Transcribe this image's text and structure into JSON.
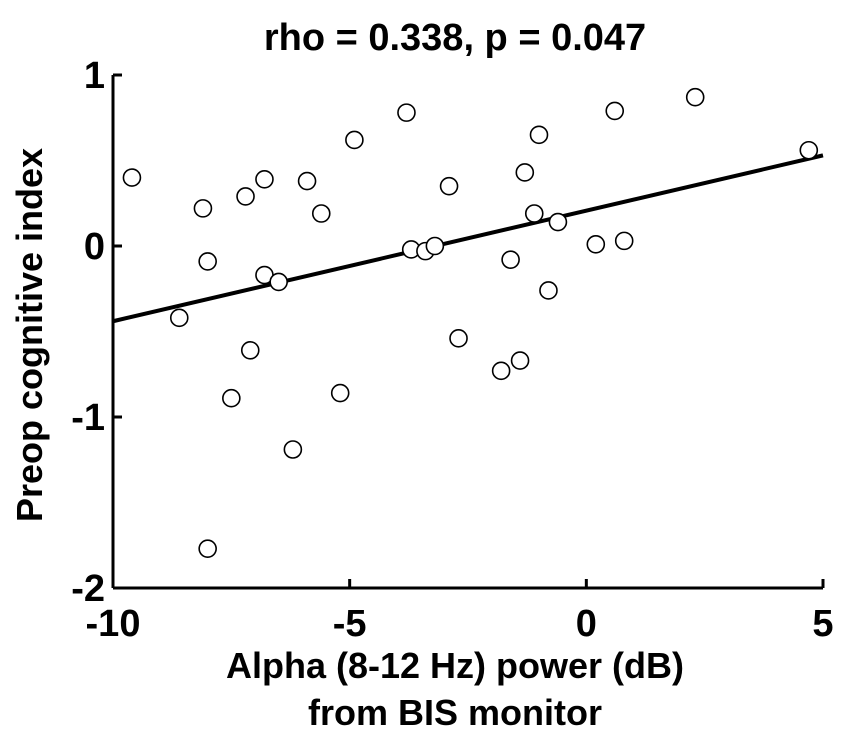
{
  "chart_data": {
    "type": "scatter",
    "title": "rho = 0.338, p = 0.047",
    "xlabel": [
      "Alpha (8-12 Hz) power (dB)",
      "from BIS monitor"
    ],
    "ylabel": "Preop cognitive index",
    "xlim": [
      -10,
      5
    ],
    "ylim": [
      -2,
      1
    ],
    "xticks": [
      {
        "value": -10,
        "label": "-10"
      },
      {
        "value": -5,
        "label": "-5"
      },
      {
        "value": 0,
        "label": "0"
      },
      {
        "value": 5,
        "label": "5"
      }
    ],
    "yticks": [
      {
        "value": 1,
        "label": "1"
      },
      {
        "value": 0,
        "label": "0"
      },
      {
        "value": -1,
        "label": "-1"
      },
      {
        "value": -2,
        "label": "-2"
      }
    ],
    "points": [
      {
        "x": -9.6,
        "y": 0.4
      },
      {
        "x": -8.6,
        "y": -0.42
      },
      {
        "x": -8.1,
        "y": 0.22
      },
      {
        "x": -8.0,
        "y": -0.09
      },
      {
        "x": -8.0,
        "y": -1.77
      },
      {
        "x": -7.5,
        "y": -0.89
      },
      {
        "x": -7.2,
        "y": 0.29
      },
      {
        "x": -7.1,
        "y": -0.61
      },
      {
        "x": -6.8,
        "y": 0.39
      },
      {
        "x": -6.8,
        "y": -0.17
      },
      {
        "x": -6.5,
        "y": -0.21
      },
      {
        "x": -6.2,
        "y": -1.19
      },
      {
        "x": -5.9,
        "y": 0.38
      },
      {
        "x": -5.6,
        "y": 0.19
      },
      {
        "x": -5.2,
        "y": -0.86
      },
      {
        "x": -4.9,
        "y": 0.62
      },
      {
        "x": -3.8,
        "y": 0.78
      },
      {
        "x": -3.7,
        "y": -0.02
      },
      {
        "x": -3.4,
        "y": -0.03
      },
      {
        "x": -3.2,
        "y": 0.0
      },
      {
        "x": -2.9,
        "y": 0.35
      },
      {
        "x": -2.7,
        "y": -0.54
      },
      {
        "x": -1.8,
        "y": -0.73
      },
      {
        "x": -1.6,
        "y": -0.08
      },
      {
        "x": -1.4,
        "y": -0.67
      },
      {
        "x": -1.3,
        "y": 0.43
      },
      {
        "x": -1.1,
        "y": 0.19
      },
      {
        "x": -1.0,
        "y": 0.65
      },
      {
        "x": -0.8,
        "y": -0.26
      },
      {
        "x": -0.6,
        "y": 0.14
      },
      {
        "x": 0.2,
        "y": 0.01
      },
      {
        "x": 0.6,
        "y": 0.79
      },
      {
        "x": 0.8,
        "y": 0.03
      },
      {
        "x": 2.3,
        "y": 0.87
      },
      {
        "x": 4.7,
        "y": 0.56
      }
    ],
    "fit_line": {
      "x": [
        -10,
        5
      ],
      "y": [
        -0.44,
        0.53
      ]
    },
    "grid": false,
    "legend": "none"
  }
}
